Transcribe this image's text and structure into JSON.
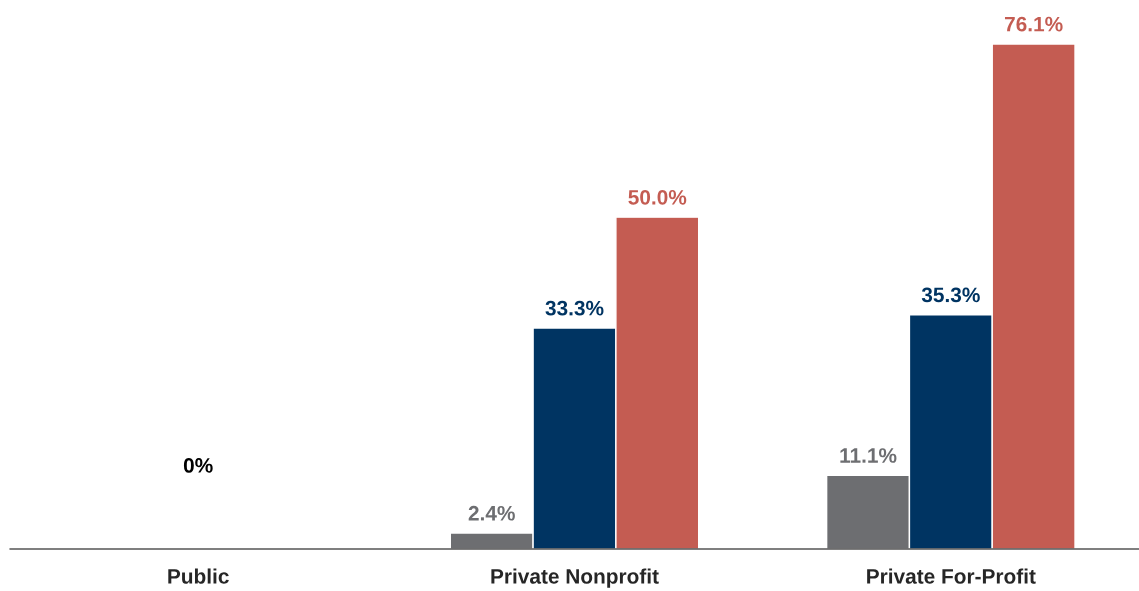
{
  "chart_data": {
    "type": "bar",
    "categories": [
      "Public",
      "Private Nonprofit",
      "Private For-Profit"
    ],
    "series": [
      {
        "color": "#6d6e71",
        "values": [
          null,
          2.4,
          11.1
        ],
        "value_labels": [
          null,
          "2.4%",
          "11.1%"
        ]
      },
      {
        "color": "#003462",
        "values": [
          null,
          33.3,
          35.3
        ],
        "value_labels": [
          null,
          "33.3%",
          "35.3%"
        ]
      },
      {
        "color": "#c45c52",
        "values": [
          null,
          50.0,
          76.1
        ],
        "value_labels": [
          null,
          "50.0%",
          "76.1%"
        ]
      }
    ],
    "annotations": [
      "0%"
    ],
    "grid": false,
    "legend": false
  }
}
